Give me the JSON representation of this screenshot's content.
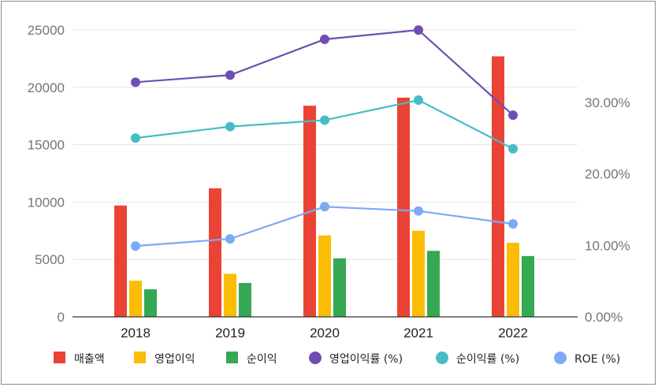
{
  "chart_data": {
    "type": "bar",
    "categories": [
      "2018",
      "2019",
      "2020",
      "2021",
      "2022"
    ],
    "series": [
      {
        "name": "매출액",
        "kind": "bar",
        "axis": "left",
        "color": "#EA4335",
        "values": [
          9700,
          11200,
          18400,
          19100,
          22700
        ]
      },
      {
        "name": "영업이익",
        "kind": "bar",
        "axis": "left",
        "color": "#FBBC04",
        "values": [
          3150,
          3750,
          7100,
          7500,
          6450
        ]
      },
      {
        "name": "순이익",
        "kind": "bar",
        "axis": "left",
        "color": "#34A853",
        "values": [
          2400,
          2950,
          5100,
          5750,
          5300
        ]
      },
      {
        "name": "영업이익률 (%)",
        "kind": "line",
        "axis": "right",
        "color": "#6F4EB1",
        "values": [
          32.8,
          33.8,
          38.8,
          40.1,
          28.2
        ]
      },
      {
        "name": "순이익률 (%)",
        "kind": "line",
        "axis": "right",
        "color": "#46BDC6",
        "values": [
          25.0,
          26.6,
          27.5,
          30.3,
          23.5
        ]
      },
      {
        "name": "ROE (%)",
        "kind": "line",
        "axis": "right",
        "color": "#7BAAF7",
        "values": [
          9.9,
          10.9,
          15.4,
          14.8,
          13.0
        ]
      }
    ],
    "y_left": {
      "ticks": [
        0,
        5000,
        10000,
        15000,
        20000,
        25000
      ],
      "ylim": [
        0,
        25000
      ]
    },
    "y_right": {
      "ticks": [
        0,
        10,
        20,
        30
      ],
      "tick_labels": [
        "0.00%",
        "10.00%",
        "20.00%",
        "30.00%"
      ],
      "ylim": [
        0,
        40
      ]
    },
    "grid": true,
    "legend": "bottom"
  }
}
